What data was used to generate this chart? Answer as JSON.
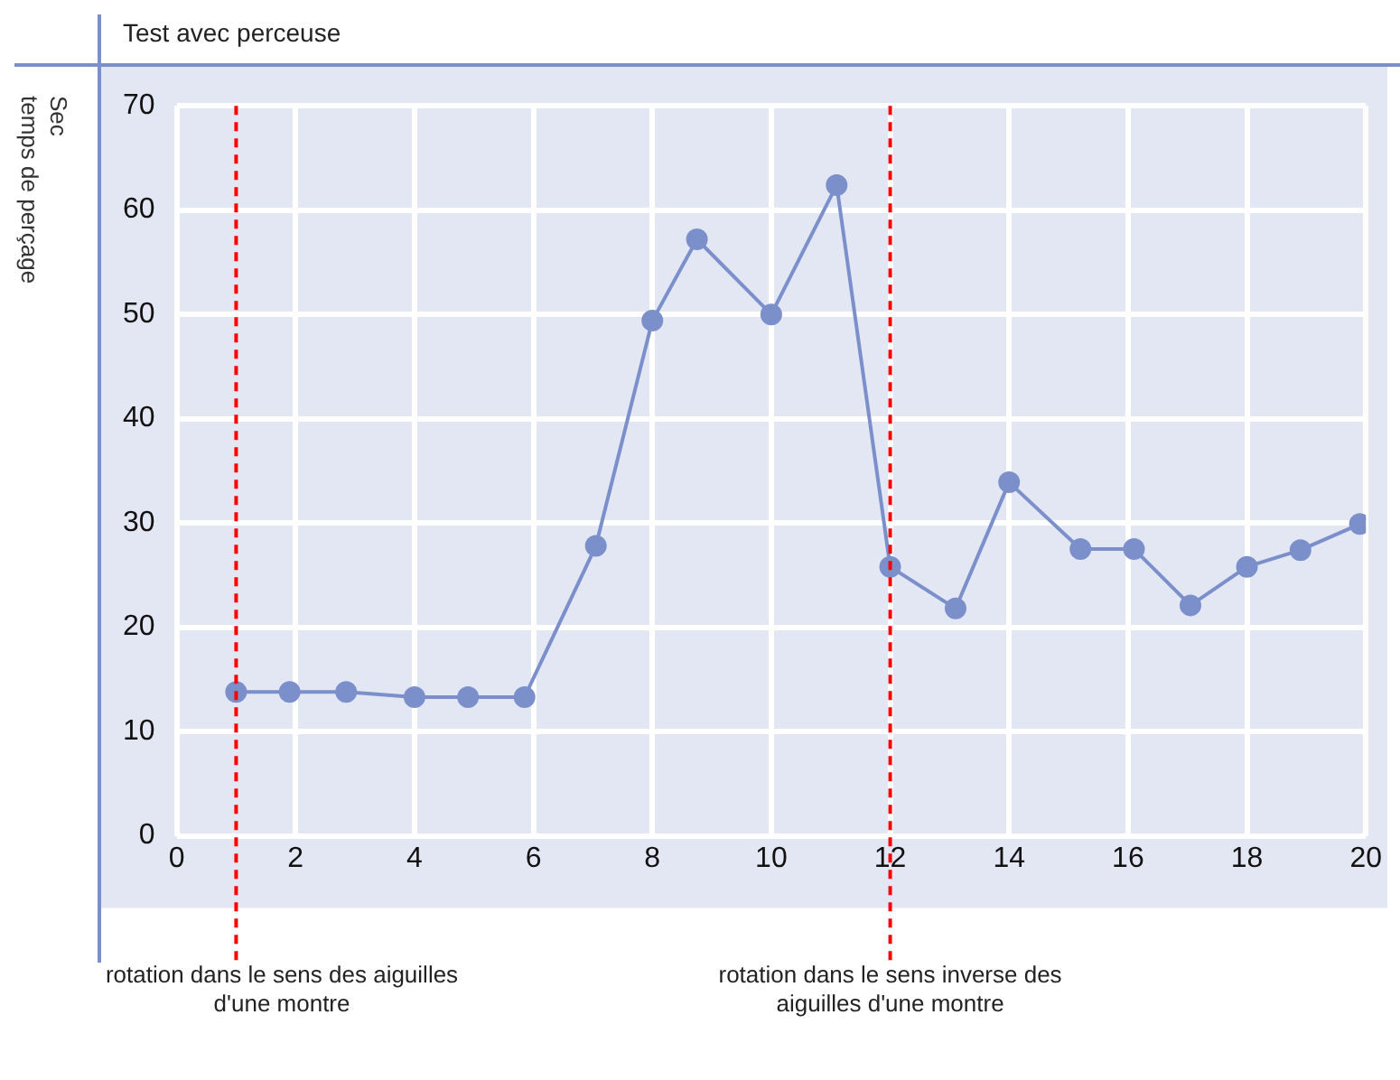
{
  "chart_data": {
    "type": "line",
    "title": "Test avec perceuse",
    "ylabel": "Sec\ntemps de perçage",
    "x": [
      1,
      1.9,
      2.85,
      4,
      4.9,
      5.85,
      7.05,
      8,
      8.75,
      10,
      11.1,
      12,
      13.1,
      14,
      15.2,
      16.1,
      17.05,
      18,
      18.9,
      19.9
    ],
    "series": [
      {
        "color": "#7b8fcb",
        "values": [
          13.8,
          13.8,
          13.8,
          13.3,
          13.3,
          13.3,
          27.8,
          49.4,
          57.2,
          50,
          62.4,
          25.8,
          21.8,
          33.9,
          27.5,
          27.5,
          22.1,
          25.8,
          27.4,
          29.9
        ]
      }
    ],
    "xlim": [
      0,
      20
    ],
    "xticks": [
      0,
      2,
      4,
      6,
      8,
      10,
      12,
      14,
      16,
      18,
      20
    ],
    "ylim": [
      0,
      70
    ],
    "yticks": [
      0,
      10,
      20,
      30,
      40,
      50,
      60,
      70
    ],
    "grid": true,
    "legend": false,
    "marker": "circle",
    "line_style": "solid",
    "ref_lines": [
      {
        "axis": "x",
        "value": 1,
        "label": "rotation dans le sens des aiguilles\nd'une montre",
        "color": "#ff0000",
        "line_style": "dashed"
      },
      {
        "axis": "x",
        "value": 12,
        "label": "rotation dans le sens inverse des\naiguilles d'une montre",
        "color": "#ff0000",
        "line_style": "dashed"
      }
    ]
  }
}
